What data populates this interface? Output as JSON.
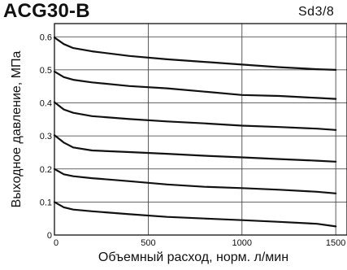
{
  "header": {
    "title": "ACG30-B",
    "subtitle": "Sd3/8"
  },
  "chart_data": {
    "type": "line",
    "title": "ACG30-B",
    "subtitle": "Sd3/8",
    "xlabel": "Объемный расход, норм. л/мин",
    "ylabel": "Выходное давление, МПа",
    "xlim": [
      0,
      1560
    ],
    "ylim": [
      0,
      0.64
    ],
    "xticks": [
      0,
      500,
      1000,
      1500
    ],
    "xtick_labels": [
      "0",
      "500",
      "1000",
      "1500"
    ],
    "yticks": [
      0,
      0.1,
      0.2,
      0.3,
      0.4,
      0.5,
      0.6
    ],
    "ytick_labels": [
      "0",
      "0.1",
      "0.2",
      "0.3",
      "0.4",
      "0.5",
      "0.6"
    ],
    "grid": true,
    "line_color": "#111111",
    "series": [
      {
        "x": [
          0,
          50,
          100,
          200,
          400,
          600,
          800,
          1000,
          1200,
          1400,
          1500
        ],
        "values": [
          0.598,
          0.578,
          0.566,
          0.556,
          0.542,
          0.532,
          0.524,
          0.516,
          0.508,
          0.502,
          0.5
        ]
      },
      {
        "x": [
          0,
          50,
          100,
          200,
          400,
          600,
          800,
          1000,
          1200,
          1400,
          1500
        ],
        "values": [
          0.495,
          0.478,
          0.47,
          0.462,
          0.451,
          0.444,
          0.434,
          0.424,
          0.421,
          0.415,
          0.412
        ]
      },
      {
        "x": [
          0,
          50,
          100,
          200,
          400,
          600,
          800,
          1000,
          1200,
          1400,
          1500
        ],
        "values": [
          0.402,
          0.38,
          0.37,
          0.36,
          0.351,
          0.344,
          0.338,
          0.331,
          0.327,
          0.322,
          0.318
        ]
      },
      {
        "x": [
          0,
          50,
          100,
          200,
          400,
          600,
          800,
          1000,
          1200,
          1400,
          1500
        ],
        "values": [
          0.302,
          0.28,
          0.265,
          0.256,
          0.251,
          0.246,
          0.24,
          0.235,
          0.23,
          0.225,
          0.222
        ]
      },
      {
        "x": [
          0,
          50,
          100,
          200,
          400,
          600,
          800,
          1000,
          1200,
          1400,
          1500
        ],
        "values": [
          0.2,
          0.184,
          0.178,
          0.172,
          0.163,
          0.153,
          0.146,
          0.142,
          0.137,
          0.131,
          0.126
        ]
      },
      {
        "x": [
          0,
          50,
          100,
          200,
          400,
          600,
          800,
          1000,
          1200,
          1400,
          1500
        ],
        "values": [
          0.1,
          0.084,
          0.077,
          0.072,
          0.063,
          0.055,
          0.05,
          0.045,
          0.04,
          0.034,
          0.026
        ]
      }
    ]
  }
}
